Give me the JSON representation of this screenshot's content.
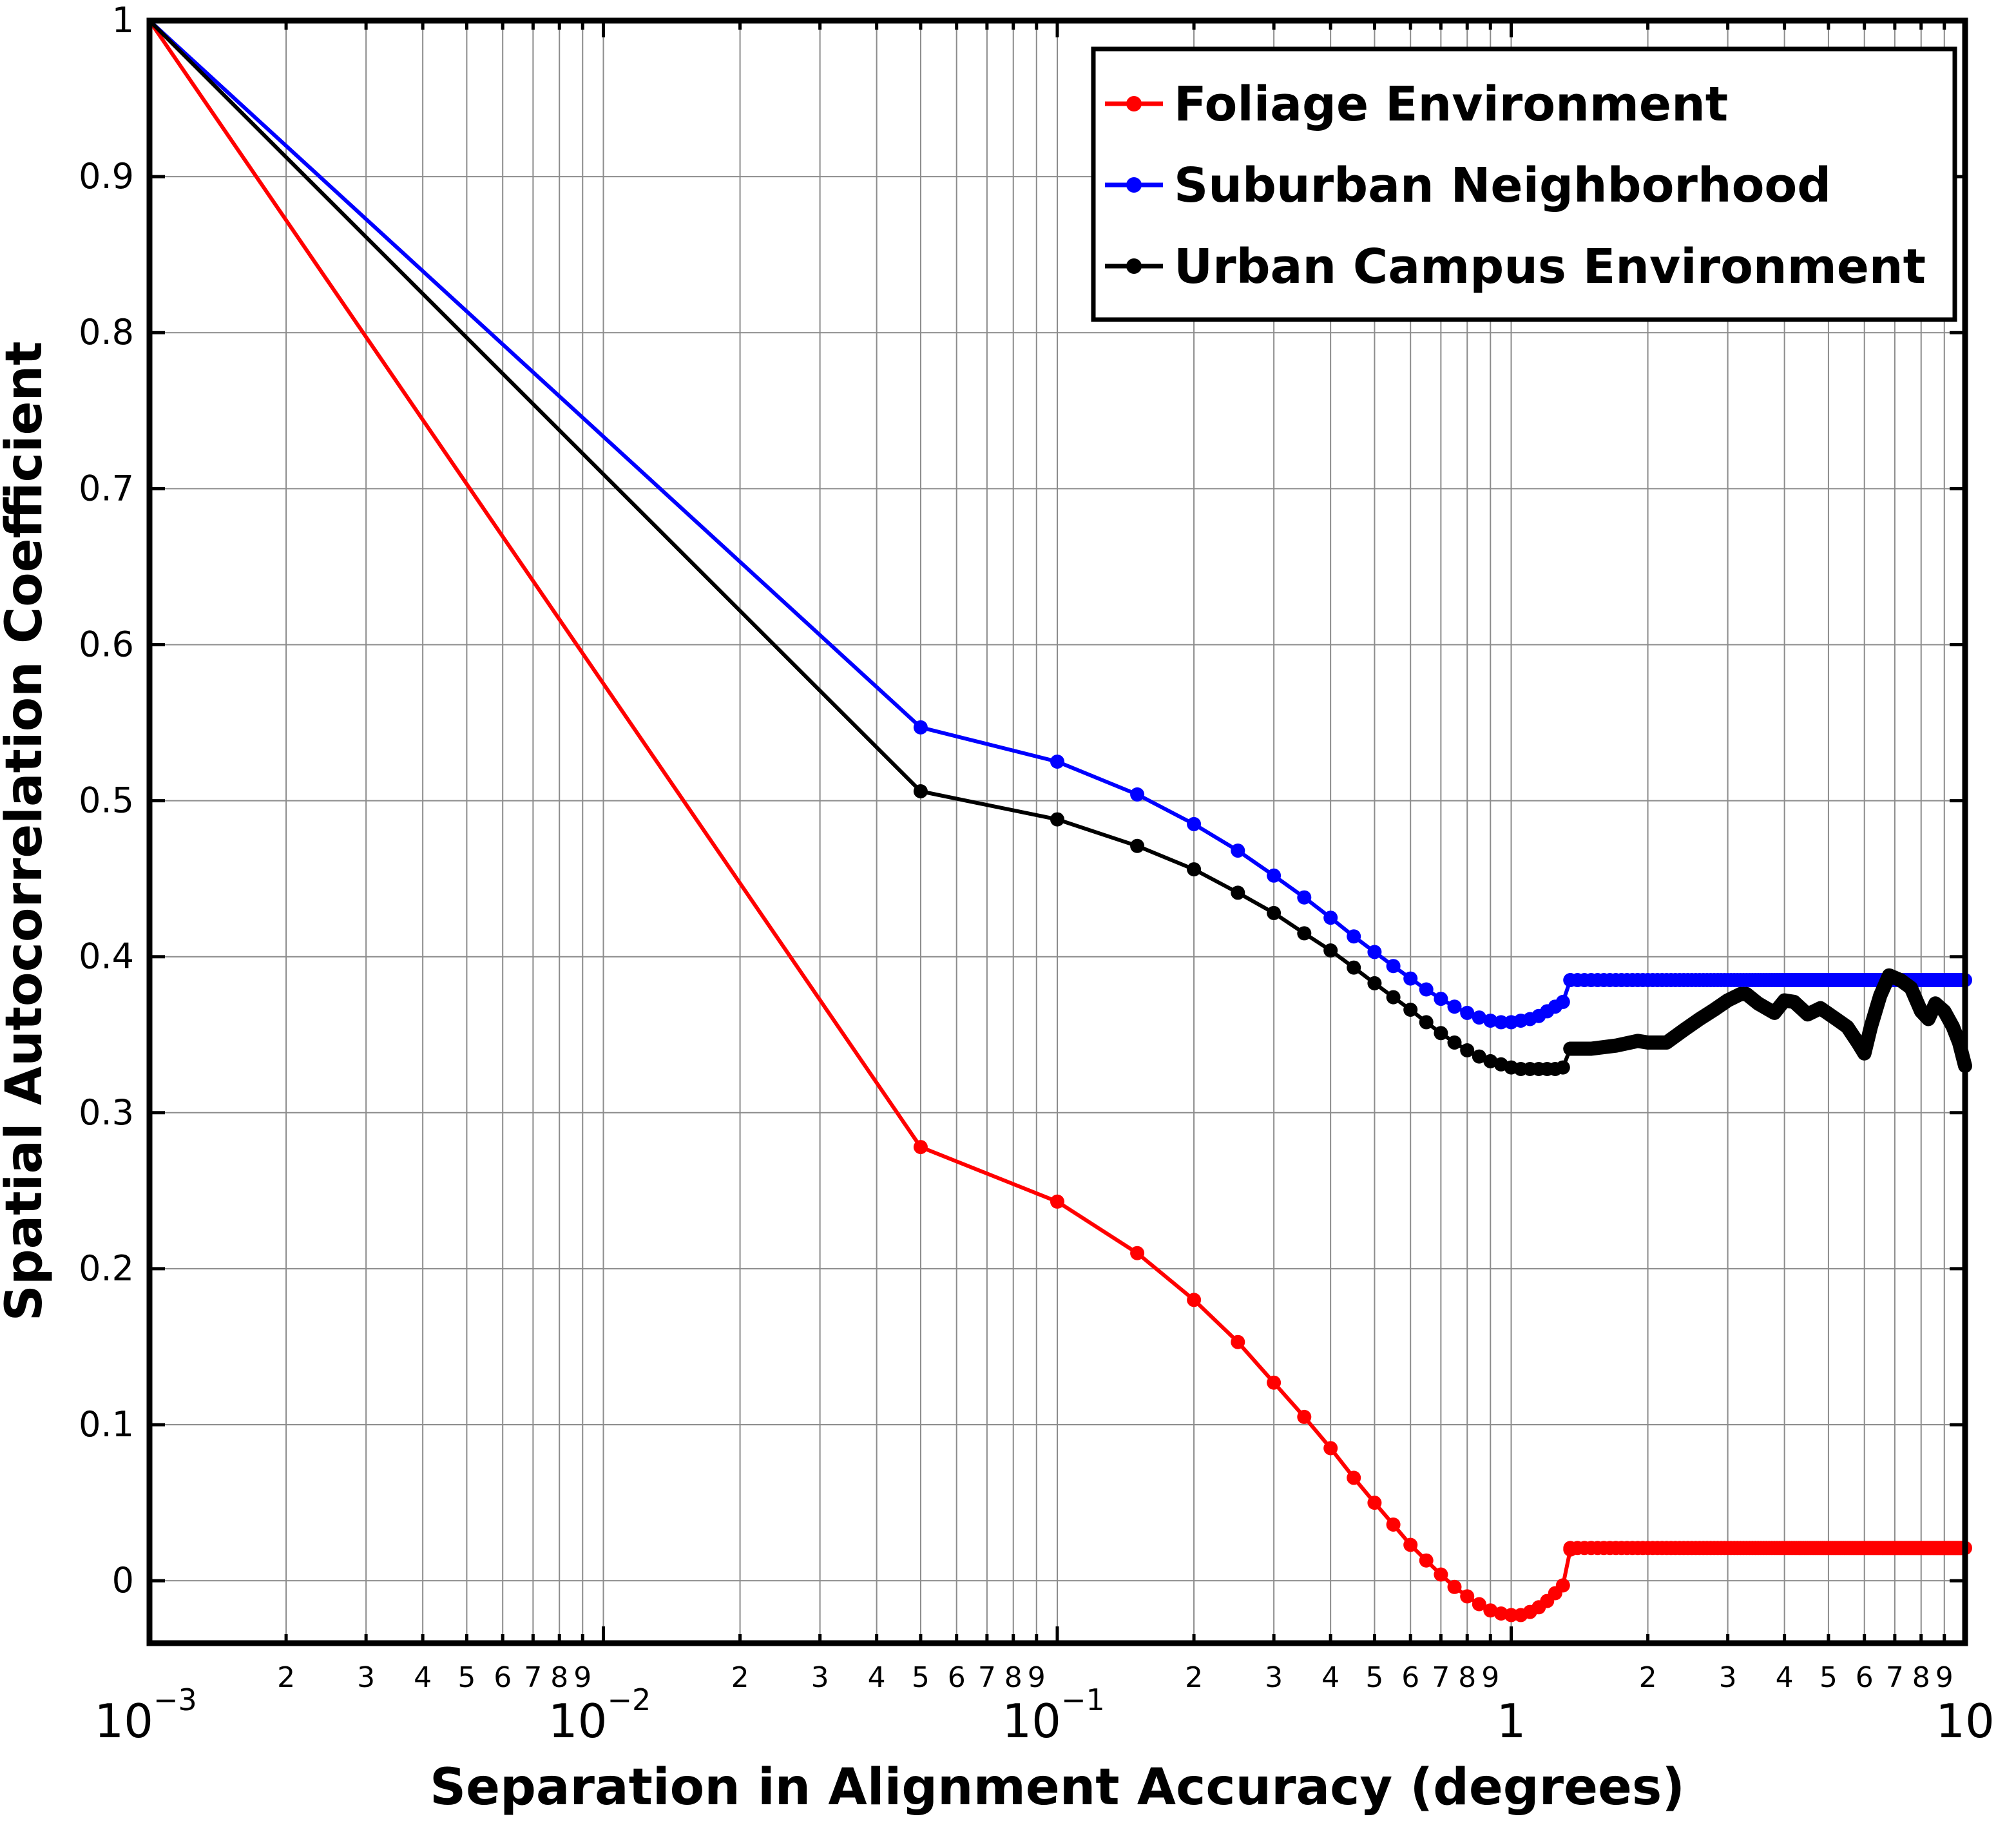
{
  "chart_data": {
    "type": "line",
    "xlabel": "Separation in Alignment Accuracy (degrees)",
    "ylabel": "Spatial Autocorrelation Coefficient",
    "xscale": "log",
    "xlim": [
      0.001,
      10
    ],
    "ylim": [
      -0.04,
      1
    ],
    "grid": true,
    "legend_position": "top-right",
    "x_major_ticks": [
      {
        "value": 0.001,
        "base": "10",
        "exp": "−3"
      },
      {
        "value": 0.01,
        "base": "10",
        "exp": "−2"
      },
      {
        "value": 0.1,
        "base": "10",
        "exp": "−1"
      },
      {
        "value": 1,
        "base": "1",
        "exp": ""
      },
      {
        "value": 10,
        "base": "10",
        "exp": ""
      }
    ],
    "x_minor_labels": [
      "2",
      "3",
      "4",
      "5",
      "6",
      "7",
      "8",
      "9"
    ],
    "y_ticks": [
      {
        "value": 0,
        "label": "0"
      },
      {
        "value": 0.1,
        "label": "0.1"
      },
      {
        "value": 0.2,
        "label": "0.2"
      },
      {
        "value": 0.3,
        "label": "0.3"
      },
      {
        "value": 0.4,
        "label": "0.4"
      },
      {
        "value": 0.5,
        "label": "0.5"
      },
      {
        "value": 0.6,
        "label": "0.6"
      },
      {
        "value": 0.7,
        "label": "0.7"
      },
      {
        "value": 0.8,
        "label": "0.8"
      },
      {
        "value": 0.9,
        "label": "0.9"
      },
      {
        "value": 1,
        "label": "1"
      }
    ],
    "series": [
      {
        "name": "Foliage Environment",
        "color": "#ff0000",
        "points": [
          [
            0.001,
            1.0
          ],
          [
            0.05,
            0.278
          ],
          [
            0.1,
            0.243
          ],
          [
            0.15,
            0.21
          ],
          [
            0.2,
            0.18
          ],
          [
            0.25,
            0.153
          ],
          [
            0.3,
            0.127
          ],
          [
            0.35,
            0.105
          ],
          [
            0.4,
            0.085
          ],
          [
            0.45,
            0.066
          ],
          [
            0.5,
            0.05
          ],
          [
            0.55,
            0.036
          ],
          [
            0.6,
            0.023
          ],
          [
            0.65,
            0.013
          ],
          [
            0.7,
            0.004
          ],
          [
            0.75,
            -0.004
          ],
          [
            0.8,
            -0.01
          ],
          [
            0.85,
            -0.015
          ],
          [
            0.9,
            -0.019
          ],
          [
            0.95,
            -0.021
          ],
          [
            1.0,
            -0.022
          ],
          [
            1.05,
            -0.022
          ],
          [
            1.1,
            -0.02
          ],
          [
            1.15,
            -0.017
          ],
          [
            1.2,
            -0.013
          ],
          [
            1.25,
            -0.008
          ],
          [
            1.3,
            -0.003
          ],
          [
            1.35,
            0.02
          ]
        ],
        "plateau": {
          "from": 1.35,
          "to": 10,
          "step": 0.05,
          "value": 0.021
        }
      },
      {
        "name": "Suburban Neighborhood",
        "color": "#0000ff",
        "points": [
          [
            0.001,
            1.0
          ],
          [
            0.05,
            0.547
          ],
          [
            0.1,
            0.525
          ],
          [
            0.15,
            0.504
          ],
          [
            0.2,
            0.485
          ],
          [
            0.25,
            0.468
          ],
          [
            0.3,
            0.452
          ],
          [
            0.35,
            0.438
          ],
          [
            0.4,
            0.425
          ],
          [
            0.45,
            0.413
          ],
          [
            0.5,
            0.403
          ],
          [
            0.55,
            0.394
          ],
          [
            0.6,
            0.386
          ],
          [
            0.65,
            0.379
          ],
          [
            0.7,
            0.373
          ],
          [
            0.75,
            0.368
          ],
          [
            0.8,
            0.364
          ],
          [
            0.85,
            0.361
          ],
          [
            0.9,
            0.359
          ],
          [
            0.95,
            0.358
          ],
          [
            1.0,
            0.358
          ],
          [
            1.05,
            0.359
          ],
          [
            1.1,
            0.36
          ],
          [
            1.15,
            0.362
          ],
          [
            1.2,
            0.365
          ],
          [
            1.25,
            0.368
          ],
          [
            1.3,
            0.371
          ],
          [
            1.35,
            0.385
          ]
        ],
        "plateau": {
          "from": 1.35,
          "to": 10,
          "step": 0.05,
          "value": 0.385
        }
      },
      {
        "name": "Urban Campus Environment",
        "color": "#000000",
        "points": [
          [
            0.001,
            1.0
          ],
          [
            0.05,
            0.506
          ],
          [
            0.1,
            0.488
          ],
          [
            0.15,
            0.471
          ],
          [
            0.2,
            0.456
          ],
          [
            0.25,
            0.441
          ],
          [
            0.3,
            0.428
          ],
          [
            0.35,
            0.415
          ],
          [
            0.4,
            0.404
          ],
          [
            0.45,
            0.393
          ],
          [
            0.5,
            0.383
          ],
          [
            0.55,
            0.374
          ],
          [
            0.6,
            0.366
          ],
          [
            0.65,
            0.358
          ],
          [
            0.7,
            0.351
          ],
          [
            0.75,
            0.345
          ],
          [
            0.8,
            0.34
          ],
          [
            0.85,
            0.336
          ],
          [
            0.9,
            0.333
          ],
          [
            0.95,
            0.331
          ],
          [
            1.0,
            0.329
          ],
          [
            1.05,
            0.328
          ],
          [
            1.1,
            0.328
          ],
          [
            1.15,
            0.328
          ],
          [
            1.2,
            0.328
          ],
          [
            1.25,
            0.328
          ],
          [
            1.3,
            0.329
          ],
          [
            1.35,
            0.341
          ]
        ],
        "tail": [
          [
            1.35,
            0.341
          ],
          [
            1.5,
            0.341
          ],
          [
            1.7,
            0.343
          ],
          [
            1.9,
            0.346
          ],
          [
            2.0,
            0.345
          ],
          [
            2.2,
            0.345
          ],
          [
            2.4,
            0.353
          ],
          [
            2.6,
            0.36
          ],
          [
            2.8,
            0.366
          ],
          [
            3.0,
            0.372
          ],
          [
            3.2,
            0.376
          ],
          [
            3.3,
            0.376
          ],
          [
            3.5,
            0.37
          ],
          [
            3.8,
            0.364
          ],
          [
            4.0,
            0.372
          ],
          [
            4.2,
            0.371
          ],
          [
            4.5,
            0.363
          ],
          [
            4.8,
            0.367
          ],
          [
            5.2,
            0.36
          ],
          [
            5.5,
            0.355
          ],
          [
            5.8,
            0.345
          ],
          [
            6.0,
            0.338
          ],
          [
            6.2,
            0.355
          ],
          [
            6.5,
            0.375
          ],
          [
            6.8,
            0.388
          ],
          [
            7.2,
            0.385
          ],
          [
            7.6,
            0.38
          ],
          [
            8.0,
            0.365
          ],
          [
            8.3,
            0.36
          ],
          [
            8.6,
            0.37
          ],
          [
            9.0,
            0.365
          ],
          [
            9.4,
            0.355
          ],
          [
            9.7,
            0.345
          ],
          [
            10.0,
            0.33
          ]
        ]
      }
    ]
  }
}
